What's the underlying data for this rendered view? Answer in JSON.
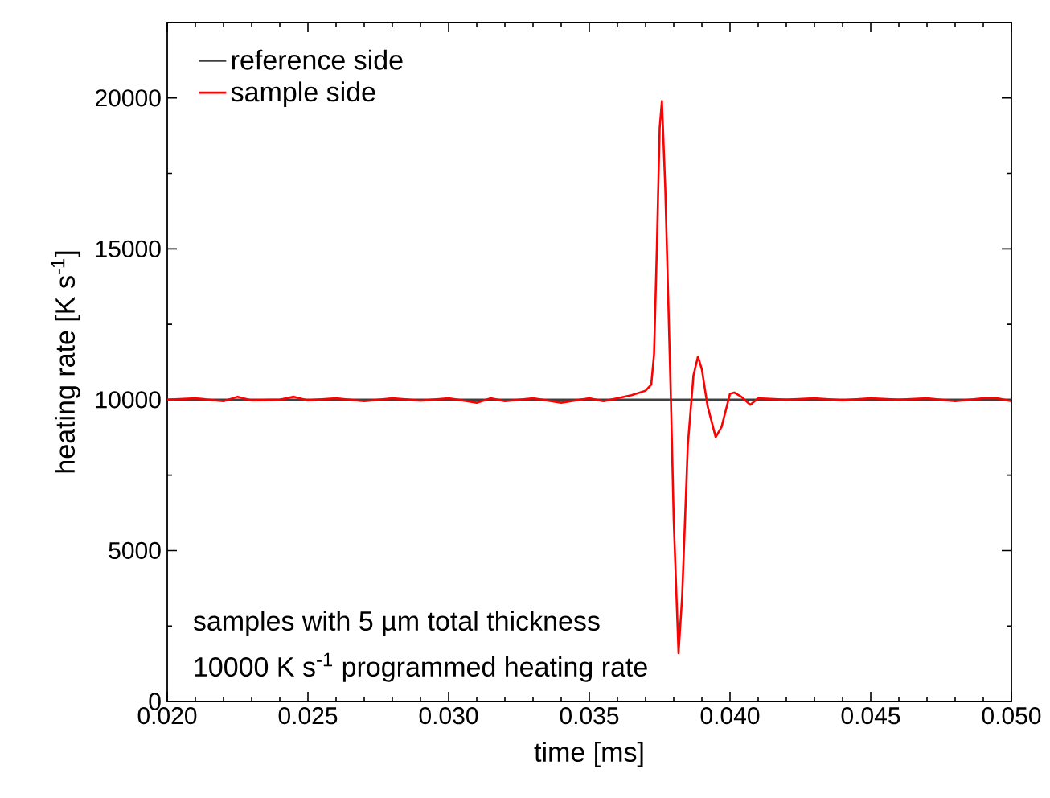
{
  "chart_data": {
    "type": "line",
    "xlabel": "time [ms]",
    "ylabel": "heating rate [K s$^{-1}$]",
    "xlim": [
      0.02,
      0.05
    ],
    "ylim": [
      0,
      22500
    ],
    "xticks": [
      {
        "value": 0.02,
        "label": "0.020"
      },
      {
        "value": 0.025,
        "label": "0.025"
      },
      {
        "value": 0.03,
        "label": "0.030"
      },
      {
        "value": 0.035,
        "label": "0.035"
      },
      {
        "value": 0.04,
        "label": "0.040"
      },
      {
        "value": 0.045,
        "label": "0.045"
      },
      {
        "value": 0.05,
        "label": "0.050"
      }
    ],
    "yticks": [
      0,
      5000,
      10000,
      15000,
      20000
    ],
    "legend": "top left",
    "grid": false,
    "marker": "none",
    "line_style": "solid",
    "annotations": [
      "samples with 5 µm total thickness",
      "10000 K s$^{-1}$ programmed heating rate"
    ],
    "series": [
      {
        "name": "reference side",
        "color": "#404040",
        "x": [
          0.02,
          0.05
        ],
        "values": [
          10000,
          10000
        ]
      },
      {
        "name": "sample side",
        "color": "#ff0000",
        "x": [
          0.02,
          0.021,
          0.022,
          0.0225,
          0.023,
          0.024,
          0.0245,
          0.025,
          0.026,
          0.027,
          0.028,
          0.029,
          0.03,
          0.031,
          0.0315,
          0.032,
          0.033,
          0.034,
          0.035,
          0.0355,
          0.036,
          0.0365,
          0.037,
          0.0372,
          0.0373,
          0.0374,
          0.0375,
          0.03758,
          0.0377,
          0.0379,
          0.038,
          0.03817,
          0.0383,
          0.0385,
          0.0387,
          0.03886,
          0.039,
          0.0392,
          0.03949,
          0.0397,
          0.04,
          0.04015,
          0.0404,
          0.04072,
          0.041,
          0.042,
          0.043,
          0.044,
          0.045,
          0.046,
          0.047,
          0.048,
          0.049,
          0.0495,
          0.05
        ],
        "values": [
          10000,
          10050,
          9950,
          10100,
          9980,
          10000,
          10100,
          9980,
          10050,
          9950,
          10050,
          9970,
          10050,
          9900,
          10050,
          9950,
          10050,
          9900,
          10050,
          9950,
          10050,
          10150,
          10300,
          10500,
          11500,
          15000,
          19000,
          19900,
          17000,
          10000,
          6000,
          1600,
          3500,
          8500,
          10800,
          11430,
          11000,
          9800,
          8760,
          9100,
          10200,
          10240,
          10100,
          9830,
          10050,
          10000,
          10050,
          9980,
          10050,
          10000,
          10050,
          9950,
          10050,
          10050,
          9950
        ]
      }
    ]
  }
}
